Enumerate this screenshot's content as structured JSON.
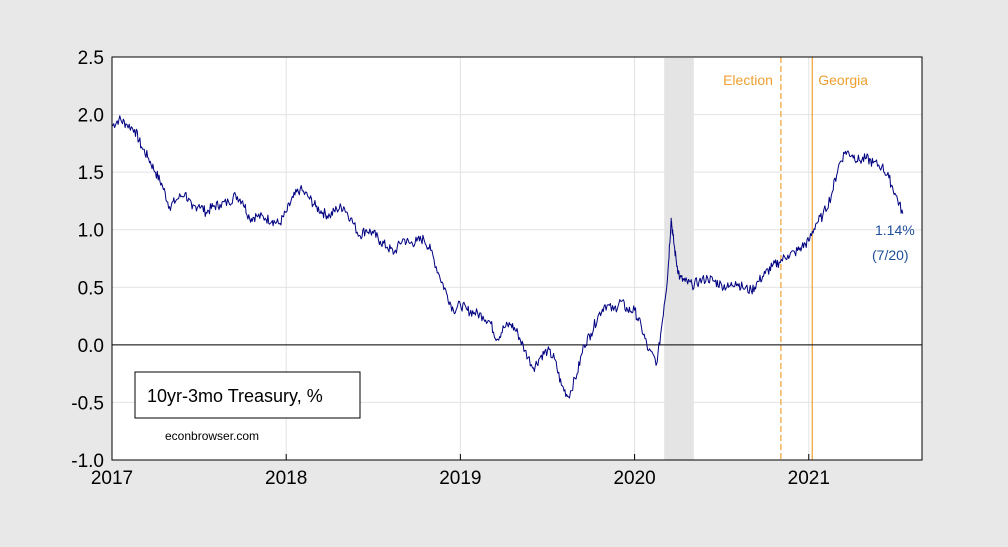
{
  "chart_data": {
    "type": "line",
    "title": "",
    "xlabel": "",
    "ylabel": "",
    "xlim": [
      2017.0,
      2021.65
    ],
    "ylim": [
      -1.0,
      2.5
    ],
    "x_ticks": [
      "2017",
      "2018",
      "2019",
      "2020",
      "2021"
    ],
    "y_ticks": [
      "2.5",
      "2.0",
      "1.5",
      "1.0",
      "0.5",
      "0.0",
      "-0.5",
      "-1.0"
    ],
    "grid": true,
    "legend": {
      "position": "bottom-left",
      "label": "10yr-3mo Treasury, %"
    },
    "source_note": "econbrowser.com",
    "recession_shading": {
      "start": 2020.17,
      "end": 2020.34
    },
    "vlines": [
      {
        "x": 2020.84,
        "label": "Election",
        "style": "dashed",
        "color": "#f0a030"
      },
      {
        "x": 2021.02,
        "label": "Georgia",
        "style": "solid",
        "color": "#f0a030"
      }
    ],
    "end_annotation": {
      "value": "1.14%",
      "date": "(7/20)"
    },
    "series": [
      {
        "name": "10yr-3mo Treasury, %",
        "color": "#000080",
        "x": [
          2017.0,
          2017.04,
          2017.08,
          2017.13,
          2017.17,
          2017.21,
          2017.25,
          2017.29,
          2017.33,
          2017.37,
          2017.42,
          2017.46,
          2017.5,
          2017.54,
          2017.58,
          2017.62,
          2017.67,
          2017.71,
          2017.75,
          2017.79,
          2017.83,
          2017.88,
          2017.92,
          2017.96,
          2018.0,
          2018.04,
          2018.08,
          2018.13,
          2018.17,
          2018.21,
          2018.25,
          2018.29,
          2018.33,
          2018.37,
          2018.42,
          2018.46,
          2018.5,
          2018.54,
          2018.58,
          2018.62,
          2018.67,
          2018.71,
          2018.75,
          2018.79,
          2018.83,
          2018.88,
          2018.92,
          2018.96,
          2019.0,
          2019.04,
          2019.08,
          2019.13,
          2019.17,
          2019.21,
          2019.25,
          2019.29,
          2019.33,
          2019.37,
          2019.42,
          2019.46,
          2019.5,
          2019.54,
          2019.58,
          2019.62,
          2019.67,
          2019.71,
          2019.75,
          2019.79,
          2019.83,
          2019.88,
          2019.92,
          2019.96,
          2020.0,
          2020.04,
          2020.08,
          2020.13,
          2020.17,
          2020.19,
          2020.21,
          2020.22,
          2020.24,
          2020.26,
          2020.29,
          2020.33,
          2020.37,
          2020.42,
          2020.46,
          2020.5,
          2020.54,
          2020.58,
          2020.62,
          2020.67,
          2020.71,
          2020.75,
          2020.79,
          2020.83,
          2020.88,
          2020.92,
          2020.96,
          2021.0,
          2021.04,
          2021.08,
          2021.13,
          2021.17,
          2021.21,
          2021.25,
          2021.29,
          2021.33,
          2021.37,
          2021.42,
          2021.46,
          2021.5,
          2021.54
        ],
        "values": [
          1.9,
          1.96,
          1.92,
          1.87,
          1.72,
          1.62,
          1.5,
          1.38,
          1.2,
          1.26,
          1.32,
          1.18,
          1.22,
          1.15,
          1.2,
          1.22,
          1.24,
          1.3,
          1.25,
          1.1,
          1.12,
          1.1,
          1.08,
          1.05,
          1.15,
          1.28,
          1.35,
          1.28,
          1.2,
          1.15,
          1.12,
          1.18,
          1.2,
          1.1,
          0.95,
          1.0,
          0.97,
          0.9,
          0.85,
          0.8,
          0.92,
          0.88,
          0.9,
          0.92,
          0.82,
          0.6,
          0.45,
          0.3,
          0.35,
          0.3,
          0.28,
          0.25,
          0.2,
          0.05,
          0.15,
          0.18,
          0.1,
          -0.05,
          -0.2,
          -0.1,
          -0.05,
          -0.12,
          -0.35,
          -0.45,
          -0.25,
          0.0,
          0.1,
          0.25,
          0.35,
          0.3,
          0.38,
          0.3,
          0.3,
          0.15,
          -0.05,
          -0.15,
          0.35,
          0.6,
          1.1,
          0.95,
          0.72,
          0.58,
          0.55,
          0.52,
          0.55,
          0.58,
          0.55,
          0.52,
          0.5,
          0.55,
          0.5,
          0.47,
          0.55,
          0.62,
          0.68,
          0.72,
          0.78,
          0.8,
          0.85,
          0.9,
          1.05,
          1.12,
          1.3,
          1.55,
          1.68,
          1.65,
          1.6,
          1.62,
          1.58,
          1.55,
          1.45,
          1.3,
          1.14
        ]
      }
    ]
  }
}
